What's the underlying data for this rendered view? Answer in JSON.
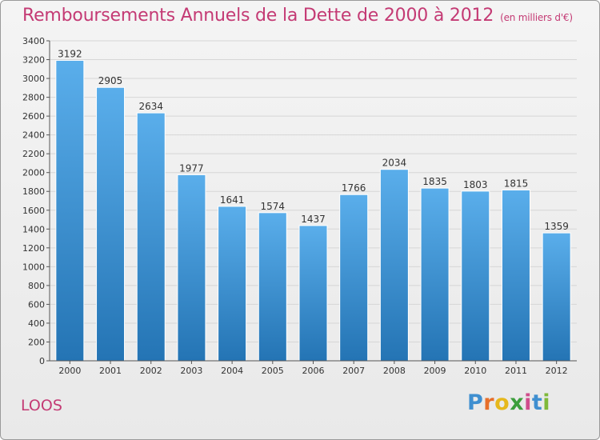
{
  "title": "Remboursements Annuels de la Dette de 2000 à 2012",
  "unit_note": "(en milliers d'€)",
  "place_name": "LOOS",
  "logo_text": "Proxiti",
  "colors": {
    "accent": "#c43a74",
    "bar": "#4a9fe0",
    "bar_dark": "#2a76b8"
  },
  "chart_data": {
    "type": "bar",
    "categories": [
      "2000",
      "2001",
      "2002",
      "2003",
      "2004",
      "2005",
      "2006",
      "2007",
      "2008",
      "2009",
      "2010",
      "2011",
      "2012"
    ],
    "values": [
      3192,
      2905,
      2634,
      1977,
      1641,
      1574,
      1437,
      1766,
      2034,
      1835,
      1803,
      1815,
      1359
    ],
    "ylim": [
      0,
      3400
    ],
    "yticks": [
      0,
      200,
      400,
      600,
      800,
      1000,
      1200,
      1400,
      1600,
      1800,
      2000,
      2200,
      2400,
      2600,
      2800,
      3000,
      3200,
      3400
    ],
    "grid": true
  }
}
